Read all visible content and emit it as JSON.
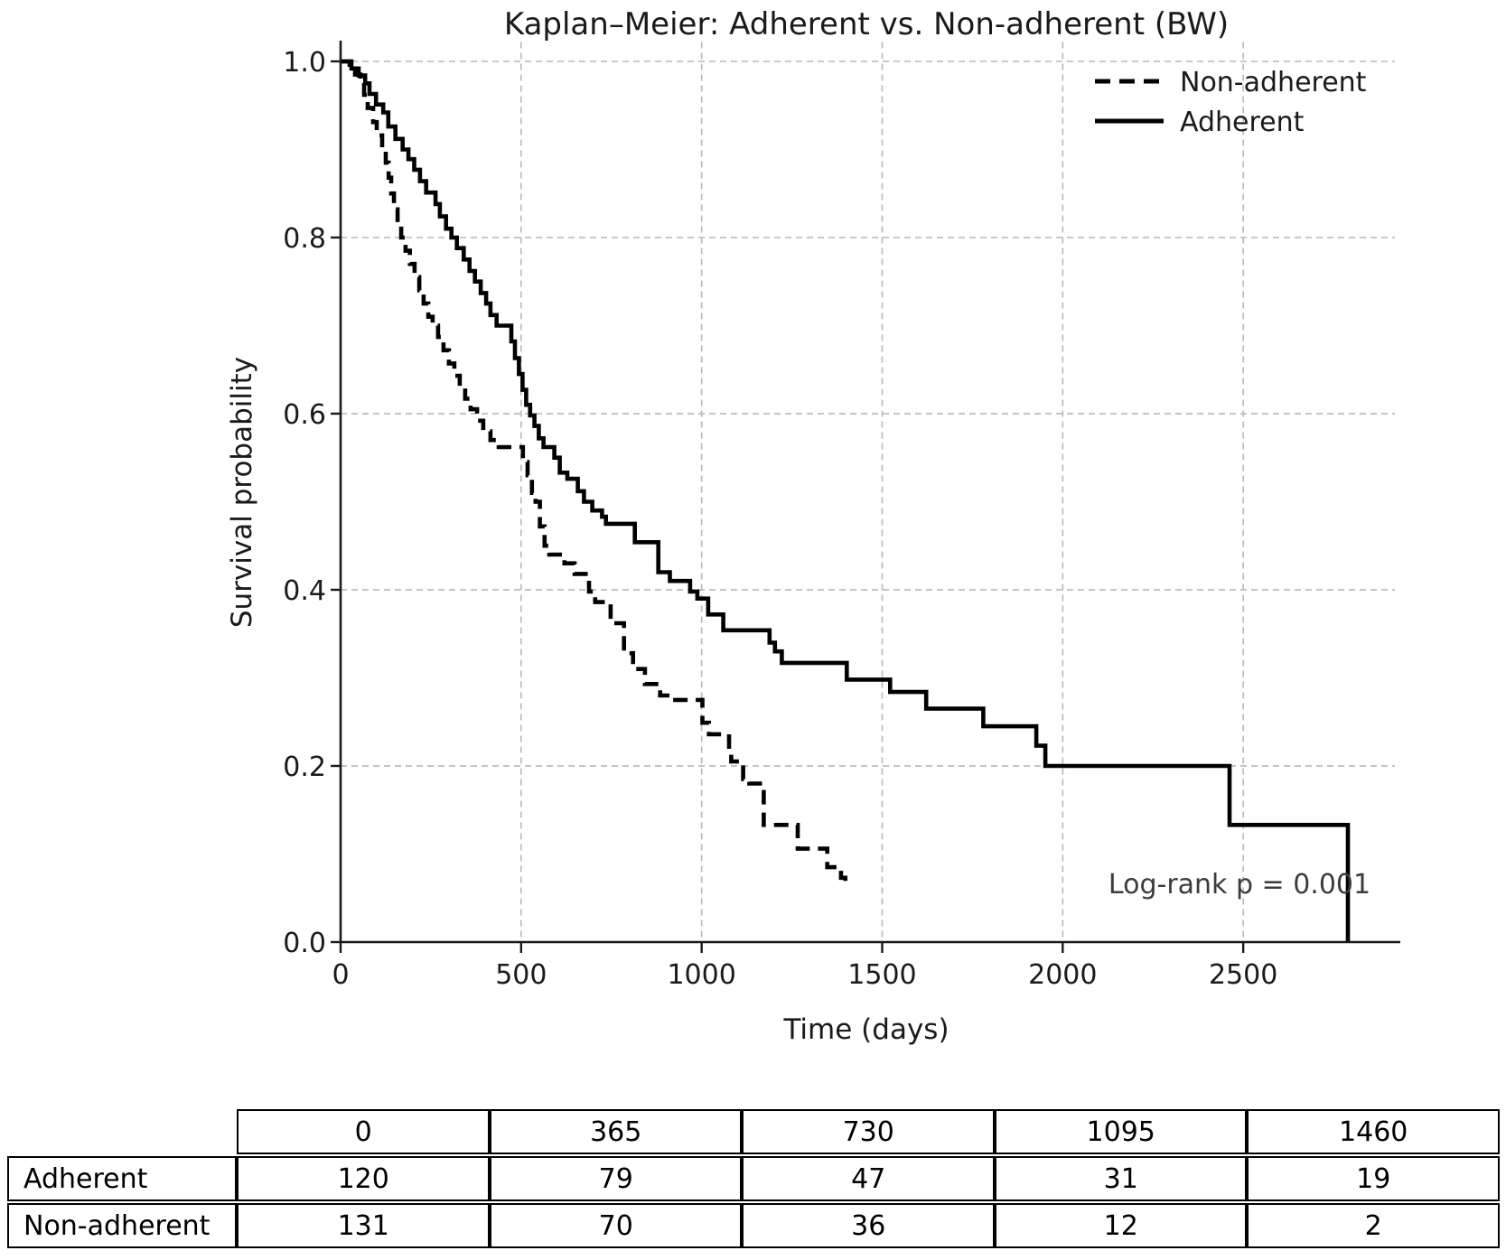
{
  "title": "Kaplan–Meier: Adherent vs. Non-adherent (BW)",
  "axes": {
    "xlabel": "Time (days)",
    "ylabel": "Survival probability",
    "xtick_labels": [
      "0",
      "500",
      "1000",
      "1500",
      "2000",
      "2500"
    ],
    "xticks": [
      0,
      500,
      1000,
      1500,
      2000,
      2500
    ],
    "ytick_labels": [
      "0.0",
      "0.2",
      "0.4",
      "0.6",
      "0.8",
      "1.0"
    ],
    "yticks": [
      0.0,
      0.2,
      0.4,
      0.6,
      0.8,
      1.0
    ]
  },
  "legend": {
    "items": [
      {
        "label": "Non-adherent",
        "line_style": "dashed"
      },
      {
        "label": "Adherent",
        "line_style": "solid"
      }
    ]
  },
  "annotation": "Log-rank p = 0.001",
  "colors": {
    "curve": "#000000",
    "grid": "#bcbcbc",
    "text": "#1a1a1a",
    "annotation_text": "#3c3c3c",
    "background": "#ffffff"
  },
  "chart_data": {
    "type": "line",
    "subtype": "kaplan-meier-step",
    "title": "Kaplan–Meier: Adherent vs. Non-adherent (BW)",
    "xlabel": "Time (days)",
    "ylabel": "Survival probability",
    "xlim": [
      0,
      2920
    ],
    "ylim": [
      0,
      1.022
    ],
    "grid": true,
    "grid_style": "dashed",
    "legend_position": "upper right",
    "annotation": "Log-rank p = 0.001",
    "series": [
      {
        "name": "Non-adherent",
        "line": "dashed",
        "color": "#000000",
        "points": [
          [
            0,
            1.0
          ],
          [
            25,
            0.992
          ],
          [
            40,
            0.985
          ],
          [
            55,
            0.977
          ],
          [
            65,
            0.962
          ],
          [
            75,
            0.947
          ],
          [
            90,
            0.931
          ],
          [
            100,
            0.916
          ],
          [
            115,
            0.9
          ],
          [
            125,
            0.885
          ],
          [
            133,
            0.868
          ],
          [
            140,
            0.85
          ],
          [
            148,
            0.832
          ],
          [
            158,
            0.815
          ],
          [
            168,
            0.8
          ],
          [
            180,
            0.785
          ],
          [
            192,
            0.77
          ],
          [
            205,
            0.755
          ],
          [
            218,
            0.74
          ],
          [
            230,
            0.725
          ],
          [
            243,
            0.71
          ],
          [
            255,
            0.7
          ],
          [
            270,
            0.687
          ],
          [
            285,
            0.672
          ],
          [
            300,
            0.657
          ],
          [
            315,
            0.643
          ],
          [
            330,
            0.63
          ],
          [
            345,
            0.617
          ],
          [
            360,
            0.605
          ],
          [
            378,
            0.592
          ],
          [
            395,
            0.58
          ],
          [
            415,
            0.57
          ],
          [
            438,
            0.562
          ],
          [
            505,
            0.545
          ],
          [
            518,
            0.53
          ],
          [
            530,
            0.51
          ],
          [
            540,
            0.5
          ],
          [
            552,
            0.472
          ],
          [
            565,
            0.45
          ],
          [
            578,
            0.44
          ],
          [
            620,
            0.43
          ],
          [
            648,
            0.418
          ],
          [
            688,
            0.398
          ],
          [
            705,
            0.386
          ],
          [
            748,
            0.362
          ],
          [
            785,
            0.328
          ],
          [
            810,
            0.31
          ],
          [
            843,
            0.293
          ],
          [
            885,
            0.28
          ],
          [
            918,
            0.275
          ],
          [
            1002,
            0.249
          ],
          [
            1020,
            0.236
          ],
          [
            1076,
            0.219
          ],
          [
            1082,
            0.205
          ],
          [
            1115,
            0.185
          ],
          [
            1132,
            0.18
          ],
          [
            1172,
            0.133
          ],
          [
            1266,
            0.106
          ],
          [
            1348,
            0.085
          ],
          [
            1386,
            0.073
          ],
          [
            1398,
            0.068
          ]
        ]
      },
      {
        "name": "Adherent",
        "line": "solid",
        "color": "#000000",
        "points": [
          [
            0,
            1.0
          ],
          [
            30,
            0.992
          ],
          [
            50,
            0.984
          ],
          [
            68,
            0.975
          ],
          [
            80,
            0.963
          ],
          [
            98,
            0.951
          ],
          [
            118,
            0.942
          ],
          [
            132,
            0.926
          ],
          [
            152,
            0.912
          ],
          [
            172,
            0.9
          ],
          [
            188,
            0.889
          ],
          [
            204,
            0.877
          ],
          [
            220,
            0.864
          ],
          [
            237,
            0.851
          ],
          [
            263,
            0.838
          ],
          [
            275,
            0.824
          ],
          [
            292,
            0.81
          ],
          [
            307,
            0.8
          ],
          [
            322,
            0.788
          ],
          [
            341,
            0.775
          ],
          [
            357,
            0.762
          ],
          [
            372,
            0.75
          ],
          [
            388,
            0.737
          ],
          [
            403,
            0.725
          ],
          [
            415,
            0.712
          ],
          [
            432,
            0.7
          ],
          [
            473,
            0.682
          ],
          [
            483,
            0.663
          ],
          [
            494,
            0.645
          ],
          [
            504,
            0.627
          ],
          [
            514,
            0.61
          ],
          [
            525,
            0.598
          ],
          [
            537,
            0.586
          ],
          [
            549,
            0.572
          ],
          [
            562,
            0.562
          ],
          [
            592,
            0.55
          ],
          [
            607,
            0.533
          ],
          [
            628,
            0.526
          ],
          [
            657,
            0.512
          ],
          [
            674,
            0.5
          ],
          [
            697,
            0.49
          ],
          [
            724,
            0.483
          ],
          [
            735,
            0.475
          ],
          [
            815,
            0.454
          ],
          [
            880,
            0.42
          ],
          [
            912,
            0.41
          ],
          [
            968,
            0.398
          ],
          [
            988,
            0.39
          ],
          [
            1018,
            0.372
          ],
          [
            1060,
            0.354
          ],
          [
            1188,
            0.34
          ],
          [
            1203,
            0.33
          ],
          [
            1222,
            0.317
          ],
          [
            1402,
            0.298
          ],
          [
            1522,
            0.284
          ],
          [
            1622,
            0.265
          ],
          [
            1780,
            0.245
          ],
          [
            1927,
            0.223
          ],
          [
            1952,
            0.2
          ],
          [
            2462,
            0.133
          ],
          [
            2790,
            0.0
          ]
        ]
      }
    ]
  },
  "risk_table": {
    "time_headers": [
      "0",
      "365",
      "730",
      "1095",
      "1460"
    ],
    "rows": [
      {
        "label": "Adherent",
        "values": [
          "120",
          "79",
          "47",
          "31",
          "19"
        ]
      },
      {
        "label": "Non-adherent",
        "values": [
          "131",
          "70",
          "36",
          "12",
          "2"
        ]
      }
    ]
  }
}
